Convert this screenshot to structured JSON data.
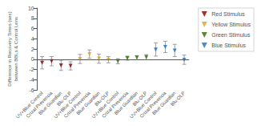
{
  "chart_data": {
    "type": "scatter",
    "ylabel": "Difference in Recovery Times (sec)\nbetween BBLs & Control Lens",
    "categories": [
      "UV+Blue Control",
      "Crizal Prevencia",
      "Blue Guardian",
      "Blu-OLP",
      "UV+Blue Control",
      "Crizal Prevencia",
      "Blue Guardian",
      "Blu-OLP",
      "UV+Blue Control",
      "Crizal Prevencia",
      "Blue Guardian",
      "Blu-OLP",
      "UV+Blue Control",
      "Crizal Prevencia",
      "Blue Guardian",
      "Blu-OLP"
    ],
    "series": [
      {
        "name": "Red Stimulus",
        "color": "#8B0000",
        "values": [
          -0.7,
          -0.4,
          -1.2,
          -1.3,
          null,
          null,
          null,
          null,
          null,
          null,
          null,
          null,
          null,
          null,
          null,
          null
        ],
        "errors_low": [
          1.2,
          0.9,
          1.0,
          0.8,
          null,
          null,
          null,
          null,
          null,
          null,
          null,
          null,
          null,
          null,
          null,
          null
        ],
        "errors_high": [
          1.2,
          0.9,
          1.0,
          0.8,
          null,
          null,
          null,
          null,
          null,
          null,
          null,
          null,
          null,
          null,
          null,
          null
        ]
      },
      {
        "name": "Yellow Stimulus",
        "color": "#DAA520",
        "values": [
          null,
          null,
          null,
          null,
          0.05,
          1.0,
          0.1,
          -0.1,
          null,
          null,
          null,
          null,
          null,
          null,
          null,
          null
        ],
        "errors_low": [
          null,
          null,
          null,
          null,
          0.9,
          0.8,
          0.9,
          0.6,
          null,
          null,
          null,
          null,
          null,
          null,
          null,
          null
        ],
        "errors_high": [
          null,
          null,
          null,
          null,
          0.9,
          0.8,
          0.9,
          0.6,
          null,
          null,
          null,
          null,
          null,
          null,
          null,
          null
        ]
      },
      {
        "name": "Green Stimulus",
        "color": "#2E6B00",
        "values": [
          null,
          null,
          null,
          null,
          null,
          null,
          null,
          null,
          -0.4,
          0.2,
          0.3,
          0.4,
          null,
          null,
          null,
          null
        ],
        "errors_low": [
          null,
          null,
          null,
          null,
          null,
          null,
          null,
          null,
          0.5,
          0.4,
          0.4,
          0.5,
          null,
          null,
          null,
          null
        ],
        "errors_high": [
          null,
          null,
          null,
          null,
          null,
          null,
          null,
          null,
          0.5,
          0.4,
          0.4,
          0.5,
          null,
          null,
          null,
          null
        ]
      },
      {
        "name": "Blue Stimulus",
        "color": "#1E6FBF",
        "values": [
          null,
          null,
          null,
          null,
          null,
          null,
          null,
          null,
          null,
          null,
          null,
          null,
          1.9,
          2.4,
          1.7,
          -0.1
        ],
        "errors_low": [
          null,
          null,
          null,
          null,
          null,
          null,
          null,
          null,
          null,
          null,
          null,
          null,
          1.3,
          1.1,
          1.2,
          0.9
        ],
        "errors_high": [
          null,
          null,
          null,
          null,
          null,
          null,
          null,
          null,
          null,
          null,
          null,
          null,
          1.3,
          1.1,
          1.2,
          0.9
        ]
      }
    ],
    "reference_line": 0,
    "ylim": [
      -6,
      10
    ],
    "yticks": [
      -6,
      -4,
      -2,
      0,
      2,
      4,
      6,
      8,
      10
    ],
    "grid": false,
    "legend": "right",
    "marker": "triangle_down"
  }
}
